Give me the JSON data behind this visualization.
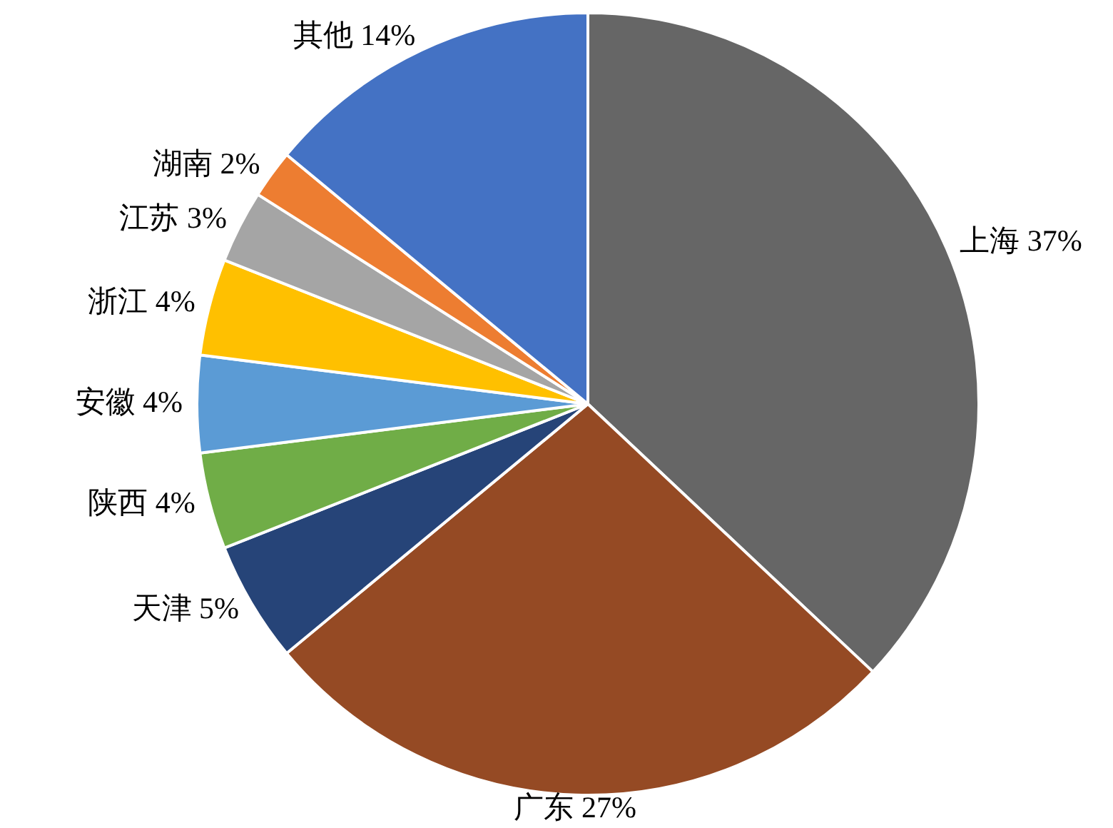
{
  "chart_data": {
    "type": "pie",
    "categories": [
      "上海",
      "广东",
      "天津",
      "陕西",
      "安徽",
      "浙江",
      "江苏",
      "湖南",
      "其他"
    ],
    "values": [
      37,
      27,
      5,
      4,
      4,
      4,
      3,
      2,
      14
    ],
    "value_labels": [
      "37%",
      "27%",
      "5%",
      "4%",
      "4%",
      "4%",
      "3%",
      "2%",
      "14%"
    ],
    "colors": [
      "#666666",
      "#954a24",
      "#264478",
      "#70ad47",
      "#5b9bd5",
      "#ffc000",
      "#a5a5a5",
      "#ed7d31",
      "#4472c4"
    ],
    "legend": false
  }
}
